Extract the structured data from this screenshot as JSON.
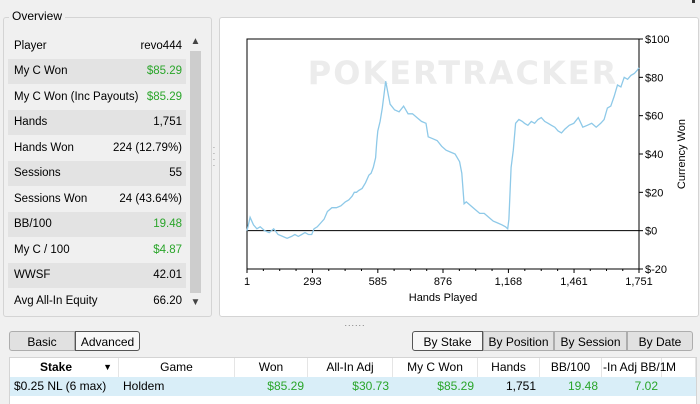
{
  "overview": {
    "title": "Overview",
    "stats": [
      {
        "label": "Player",
        "value": "revo444",
        "color": "#000000"
      },
      {
        "label": "My C Won",
        "value": "$85.29",
        "color": "#2aa52a"
      },
      {
        "label": "My C Won (Inc Payouts)",
        "value": "$85.29",
        "color": "#2aa52a"
      },
      {
        "label": "Hands",
        "value": "1,751",
        "color": "#000000"
      },
      {
        "label": "Hands Won",
        "value": "224 (12.79%)",
        "color": "#000000"
      },
      {
        "label": "Sessions",
        "value": "55",
        "color": "#000000"
      },
      {
        "label": "Sessions Won",
        "value": "24 (43.64%)",
        "color": "#000000"
      },
      {
        "label": "BB/100",
        "value": "19.48",
        "color": "#2aa52a"
      },
      {
        "label": "My C / 100",
        "value": "$4.87",
        "color": "#2aa52a"
      },
      {
        "label": "WWSF",
        "value": "42.01",
        "color": "#000000"
      },
      {
        "label": "Avg All-In Equity",
        "value": "66.20",
        "color": "#000000"
      }
    ],
    "scroll_up_icon": "chevron-up-icon",
    "scroll_down_icon": "chevron-down-icon"
  },
  "chart": {
    "watermark": "POKERTRACKER",
    "line_color": "#8ec9e8"
  },
  "chart_data": {
    "type": "line",
    "title": "",
    "xlabel": "Hands Played",
    "ylabel": "Currency Won",
    "x_ticks": [
      "1",
      "293",
      "585",
      "876",
      "1,168",
      "1,461",
      "1,751"
    ],
    "y_ticks": [
      "$100",
      "$80",
      "$60",
      "$40",
      "$20",
      "$0",
      "$-20"
    ],
    "xlim": [
      1,
      1751
    ],
    "ylim": [
      -20,
      100
    ],
    "grid": false,
    "series": [
      {
        "x": [
          1,
          15,
          30,
          45,
          60,
          80,
          100,
          120,
          140,
          160,
          180,
          200,
          215,
          230,
          245,
          260,
          275,
          290,
          300,
          315,
          330,
          345,
          360,
          380,
          400,
          420,
          440,
          455,
          470,
          480,
          490,
          500,
          515,
          530,
          545,
          555,
          565,
          575,
          580,
          585,
          595,
          605,
          620,
          640,
          660,
          680,
          700,
          720,
          740,
          760,
          780,
          800,
          810,
          830,
          850,
          870,
          890,
          910,
          930,
          950,
          960,
          970,
          980,
          990,
          1000,
          1020,
          1040,
          1060,
          1080,
          1100,
          1120,
          1140,
          1155,
          1165,
          1170,
          1180,
          1190,
          1200,
          1215,
          1230,
          1240,
          1255,
          1270,
          1285,
          1300,
          1315,
          1330,
          1345,
          1360,
          1375,
          1390,
          1405,
          1420,
          1440,
          1460,
          1480,
          1500,
          1520,
          1540,
          1560,
          1580,
          1595,
          1610,
          1625,
          1640,
          1655,
          1670,
          1685,
          1700,
          1715,
          1730,
          1745,
          1751
        ],
        "y": [
          0,
          7,
          3,
          1,
          2,
          0,
          -1,
          1,
          -2,
          -3,
          -4,
          -3,
          -2,
          -3,
          -2,
          -1,
          -2,
          -2,
          1,
          2,
          4,
          6,
          10,
          12,
          12,
          13,
          15,
          16,
          18,
          20,
          20,
          21,
          22,
          25,
          29,
          30,
          33,
          38,
          46,
          52,
          57,
          64,
          78,
          66,
          63,
          62,
          65,
          61,
          61,
          59,
          57,
          56,
          49,
          48,
          47,
          44,
          42,
          41,
          40,
          36,
          30,
          14,
          15,
          14,
          13,
          11,
          9,
          9,
          7,
          5,
          4,
          3,
          2,
          1,
          6,
          33,
          42,
          56,
          58,
          57,
          56,
          55,
          57,
          56,
          58,
          59,
          57,
          56,
          55,
          54,
          52,
          51,
          53,
          55,
          56,
          59,
          54,
          55,
          56,
          54,
          56,
          58,
          64,
          65,
          70,
          76,
          75,
          80,
          79,
          81,
          82,
          84,
          85
        ]
      }
    ]
  },
  "view_toggle": {
    "basic": "Basic",
    "advanced": "Advanced"
  },
  "group_buttons": {
    "by_stake": "By Stake",
    "by_position": "By Position",
    "by_session": "By Session",
    "by_date": "By Date"
  },
  "table": {
    "columns": [
      "Stake",
      "Game",
      "Won",
      "All-In Adj",
      "My C Won",
      "Hands",
      "BB/100",
      "-In Adj BB/1",
      "M"
    ],
    "sort_icon": "chevron-down-icon",
    "rows": [
      [
        "$0.25 NL (6 max)",
        "Holdem",
        "$85.29",
        "$30.73",
        "$85.29",
        "1,751",
        "19.48",
        "7.02",
        ""
      ]
    ]
  }
}
